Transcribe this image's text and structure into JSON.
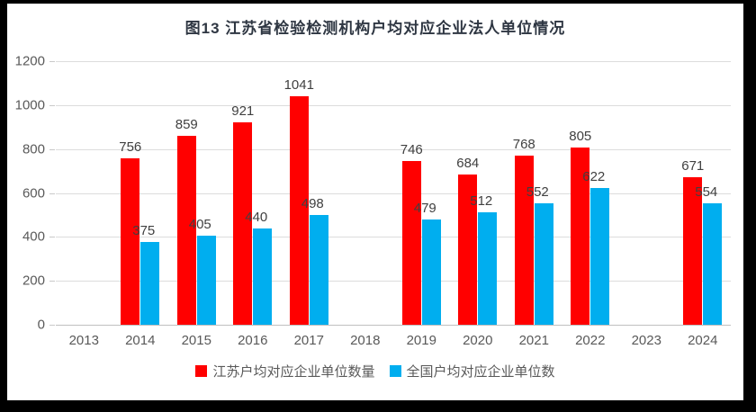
{
  "chart_data": {
    "type": "bar",
    "title": "图13  江苏省检验检测机构户均对应企业法人单位情况",
    "categories": [
      "2013",
      "2014",
      "2015",
      "2016",
      "2017",
      "2018",
      "2019",
      "2020",
      "2021",
      "2022",
      "2023",
      "2024"
    ],
    "series": [
      {
        "name": "江苏户均对应企业单位数量",
        "color": "#ff0000",
        "values": [
          null,
          756,
          859,
          921,
          1041,
          null,
          746,
          684,
          768,
          805,
          null,
          671
        ]
      },
      {
        "name": "全国户均对应企业单位数",
        "color": "#00aeef",
        "values": [
          null,
          375,
          405,
          440,
          498,
          null,
          479,
          512,
          552,
          622,
          null,
          554
        ]
      }
    ],
    "xlabel": "",
    "ylabel": "",
    "ylim": [
      0,
      1200
    ],
    "yticks": [
      0,
      200,
      400,
      600,
      800,
      1000,
      1200
    ],
    "grid": true,
    "legend_position": "bottom",
    "colors": {
      "grid": "#dcdcdc",
      "axis_line": "#bfbfbf",
      "axis_text": "#595959",
      "data_label": "#404040",
      "title_text": "#2e3642",
      "frame_border": "#000000",
      "background": "#ffffff"
    }
  }
}
